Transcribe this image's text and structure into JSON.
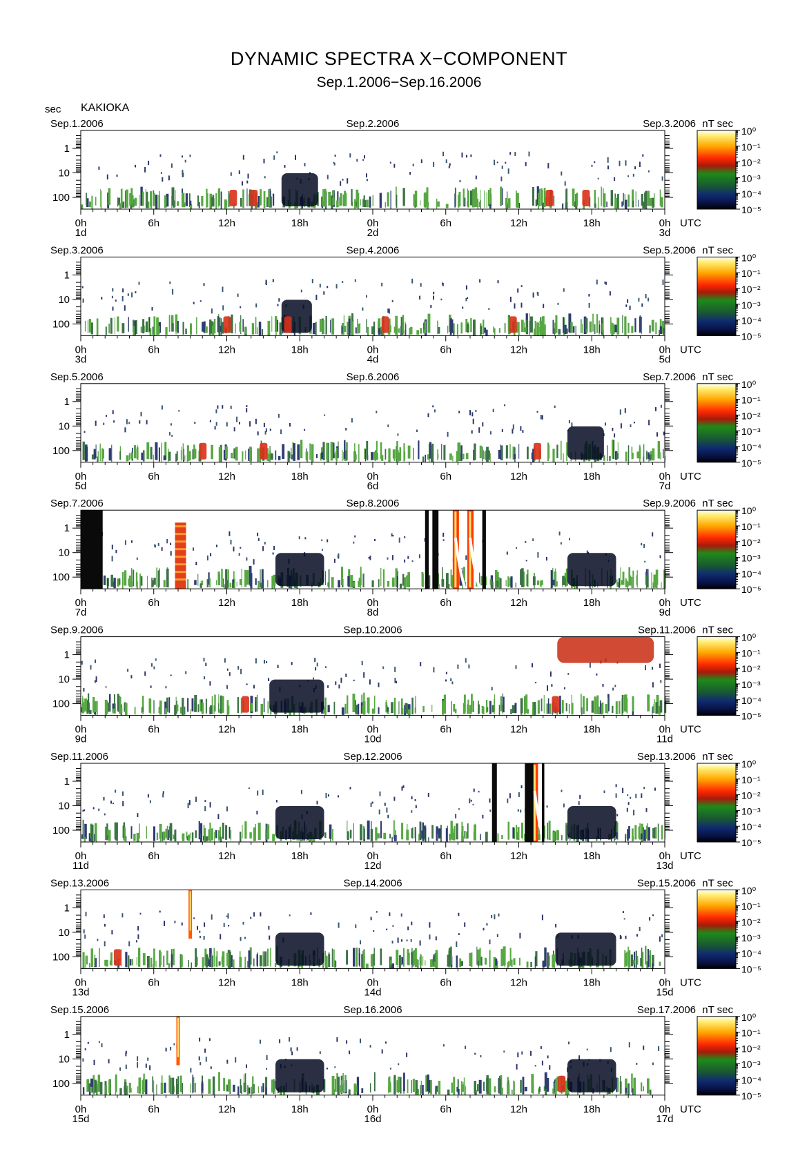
{
  "chart_data": {
    "type": "heatmap",
    "title": "DYNAMIC SPECTRA X−COMPONENT",
    "subtitle": "Sep.1.2006−Sep.16.2006",
    "station": "KAKIOKA",
    "ylabel": "sec",
    "colorbar_unit_label": "nT² sec",
    "utc_label": "UTC",
    "x_tick_labels": [
      "0h",
      "6h",
      "12h",
      "18h",
      "0h",
      "6h",
      "12h",
      "18h",
      "0h"
    ],
    "y_ticks": [
      1,
      10,
      100
    ],
    "y_tick_labels": [
      "1",
      "10",
      "100"
    ],
    "colorbar_ticks": [
      "10⁰",
      "10⁻¹",
      "10⁻²",
      "10⁻³",
      "10⁻⁴",
      "10⁻⁵"
    ],
    "colormap": [
      "#000000",
      "#0a0f4e",
      "#1d4a46",
      "#228a1c",
      "#3c8a1a",
      "#d02a10",
      "#ff2a00",
      "#ff9a00",
      "#ffffff"
    ],
    "panels": [
      {
        "date_left": "Sep.1.2006",
        "date_mid": "Sep.2.2006",
        "date_right": "Sep.3.2006",
        "day_labels": [
          "1d",
          "2d",
          "3d"
        ],
        "events": [
          {
            "hour": 12.5,
            "kind": "burst"
          },
          {
            "hour": 14.2,
            "kind": "burst"
          },
          {
            "hour": 38.5,
            "kind": "burst"
          },
          {
            "hour": 41.5,
            "kind": "burst"
          }
        ],
        "gaps": [],
        "quiet": [
          [
            16.5,
            19.5
          ]
        ]
      },
      {
        "date_left": "Sep.3.2006",
        "date_mid": "Sep.4.2006",
        "date_right": "Sep.5.2006",
        "day_labels": [
          "3d",
          "4d",
          "5d"
        ],
        "events": [
          {
            "hour": 12.0,
            "kind": "burst"
          },
          {
            "hour": 17.0,
            "kind": "burst"
          },
          {
            "hour": 25.0,
            "kind": "burst"
          },
          {
            "hour": 35.5,
            "kind": "burst"
          }
        ],
        "gaps": [],
        "quiet": [
          [
            16.5,
            19.0
          ]
        ]
      },
      {
        "date_left": "Sep.5.2006",
        "date_mid": "Sep.6.2006",
        "date_right": "Sep.7.2006",
        "day_labels": [
          "5d",
          "6d",
          "7d"
        ],
        "events": [
          {
            "hour": 10.0,
            "kind": "burst"
          },
          {
            "hour": 15.0,
            "kind": "burst"
          },
          {
            "hour": 37.5,
            "kind": "burst"
          }
        ],
        "gaps": [],
        "quiet": [
          [
            40.0,
            43.0
          ]
        ]
      },
      {
        "date_left": "Sep.7.2006",
        "date_mid": "Sep.8.2006",
        "date_right": "Sep.9.2006",
        "day_labels": [
          "7d",
          "8d",
          "9d"
        ],
        "events": [
          {
            "hour": 8.2,
            "kind": "pulsation"
          },
          {
            "hour": 30.8,
            "kind": "storm"
          },
          {
            "hour": 32.0,
            "kind": "storm"
          }
        ],
        "gaps": [
          [
            0.0,
            1.8
          ],
          [
            28.3,
            28.6
          ],
          [
            28.9,
            29.4
          ],
          [
            33.0,
            33.3
          ]
        ],
        "quiet": [
          [
            16.0,
            20.0
          ],
          [
            40.0,
            44.0
          ]
        ]
      },
      {
        "date_left": "Sep.9.2006",
        "date_mid": "Sep.10.2006",
        "date_right": "Sep.11.2006",
        "day_labels": [
          "9d",
          "10d",
          "11d"
        ],
        "events": [
          {
            "hour": 13.5,
            "kind": "burst"
          },
          {
            "hour": 39.0,
            "kind": "burst"
          },
          {
            "hour": 42.0,
            "kind": "storm_high"
          }
        ],
        "gaps": [],
        "quiet": [
          [
            15.5,
            20.0
          ]
        ]
      },
      {
        "date_left": "Sep.11.2006",
        "date_mid": "Sep.12.2006",
        "date_right": "Sep.13.2006",
        "day_labels": [
          "11d",
          "12d",
          "13d"
        ],
        "events": [
          {
            "hour": 37.3,
            "kind": "storm"
          }
        ],
        "gaps": [
          [
            33.8,
            34.2
          ],
          [
            36.5,
            37.2
          ],
          [
            37.9,
            38.1
          ]
        ],
        "quiet": [
          [
            16.0,
            20.0
          ],
          [
            40.0,
            44.0
          ]
        ]
      },
      {
        "date_left": "Sep.13.2006",
        "date_mid": "Sep.14.2006",
        "date_right": "Sep.15.2006",
        "day_labels": [
          "13d",
          "14d",
          "15d"
        ],
        "events": [
          {
            "hour": 9.0,
            "kind": "spike"
          },
          {
            "hour": 3.0,
            "kind": "burst"
          }
        ],
        "gaps": [],
        "quiet": [
          [
            16.0,
            20.0
          ],
          [
            39.0,
            44.0
          ]
        ]
      },
      {
        "date_left": "Sep.15.2006",
        "date_mid": "Sep.16.2006",
        "date_right": "Sep.17.2006",
        "day_labels": [
          "15d",
          "16d",
          "17d"
        ],
        "events": [
          {
            "hour": 8.0,
            "kind": "spike"
          },
          {
            "hour": 39.5,
            "kind": "burst"
          }
        ],
        "gaps": [],
        "quiet": [
          [
            16.0,
            20.0
          ],
          [
            40.0,
            44.0
          ]
        ]
      }
    ]
  }
}
